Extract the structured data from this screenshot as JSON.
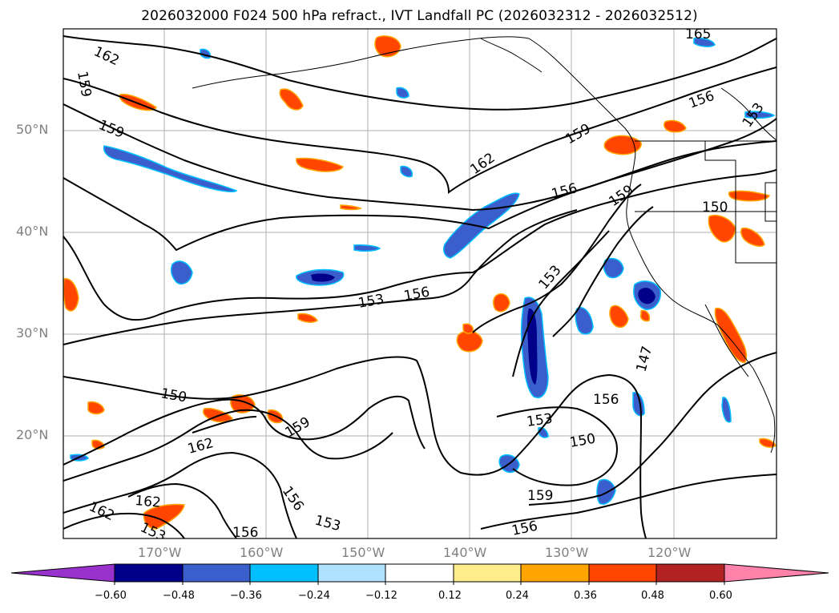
{
  "title": "2026032000 F024 500 hPa refract., IVT Landfall PC (2026032312 - 2026032512)",
  "map": {
    "lat_labels": [
      "50°N",
      "40°N",
      "30°N",
      "20°N"
    ],
    "lon_labels": [
      "170°W",
      "160°W",
      "150°W",
      "140°W",
      "130°W",
      "120°W"
    ],
    "contour_labels": [
      "165",
      "162",
      "159",
      "156",
      "153",
      "159",
      "162",
      "156",
      "159",
      "150",
      "153",
      "156",
      "153",
      "147",
      "150",
      "162",
      "159",
      "156",
      "153",
      "150",
      "156",
      "159",
      "162",
      "162",
      "153",
      "156",
      "153",
      "156",
      "159",
      "153",
      "156"
    ]
  },
  "colorbar": {
    "ticks": [
      "−0.60",
      "−0.48",
      "−0.36",
      "−0.24",
      "−0.12",
      "0.12",
      "0.24",
      "0.36",
      "0.48",
      "0.60"
    ],
    "colors": [
      "#9932cc",
      "#00008b",
      "#3a5fcd",
      "#00bfff",
      "#b0e2ff",
      "#ffffff",
      "#ffec8b",
      "#ffa500",
      "#ff4500",
      "#b22222",
      "#ff82ab"
    ]
  }
}
